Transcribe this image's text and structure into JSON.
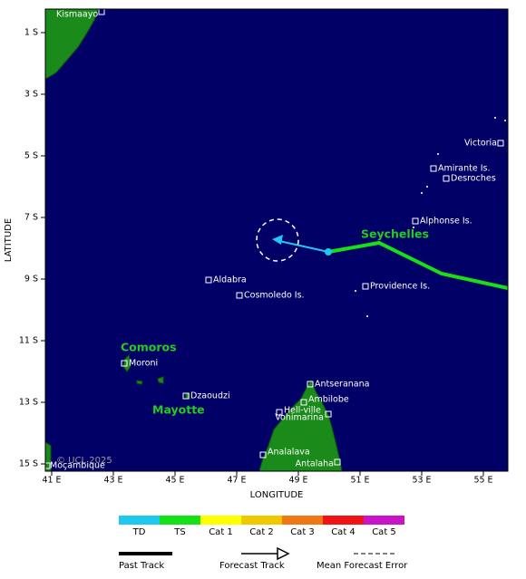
{
  "axes": {
    "x_label": "LONGITUDE",
    "y_label": "LATITUDE",
    "x_ticks": [
      "41 E",
      "43 E",
      "45 E",
      "47 E",
      "49 E",
      "51 E",
      "53 E",
      "55 E"
    ],
    "y_ticks": [
      "1 S",
      "3 S",
      "5 S",
      "7 S",
      "9 S",
      "11 S",
      "13 S",
      "15 S"
    ]
  },
  "places": [
    "Kismaayo",
    "Victoria",
    "Amirante Is.",
    "Desroches",
    "Alphonse Is.",
    "Aldabra",
    "Cosmoledo Is.",
    "Providence Is.",
    "Moroni",
    "Dzaoudzi",
    "Antseranana",
    "Ambilobe",
    "Hell-ville",
    "Vohimarina",
    "Analalava",
    "Antalaha",
    "Moçambique"
  ],
  "regions": [
    "Seychelles",
    "Comoros",
    "Mayotte"
  ],
  "copyright": "© UCL 2025",
  "legend": {
    "categories": [
      "TD",
      "TS",
      "Cat 1",
      "Cat 2",
      "Cat 3",
      "Cat 4",
      "Cat 5"
    ],
    "colors": [
      "#1ec8f0",
      "#16e016",
      "#ffff00",
      "#f0c800",
      "#f07814",
      "#f01414",
      "#c814c8"
    ],
    "tracks": [
      "Past Track",
      "Forecast Track",
      "Mean Forecast Error"
    ]
  }
}
